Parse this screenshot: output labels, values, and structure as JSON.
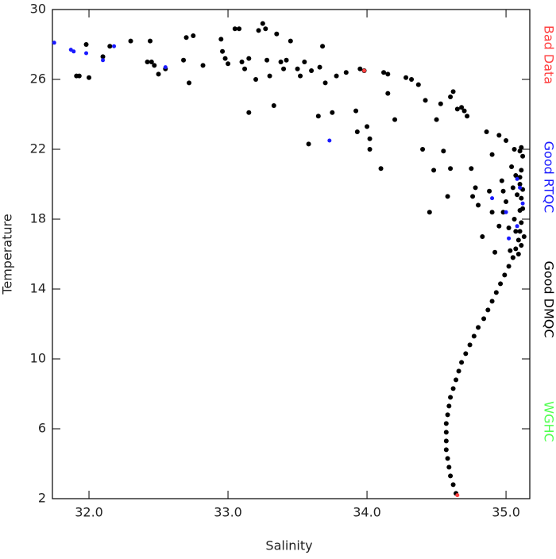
{
  "chart_data": {
    "type": "scatter",
    "xlabel": "Salinity",
    "ylabel": "Temperature",
    "xlim": [
      31.737,
      35.171
    ],
    "ylim": [
      2,
      30
    ],
    "xticks": [
      {
        "value": 32,
        "label": "32.0"
      },
      {
        "value": 33,
        "label": "33.0"
      },
      {
        "value": 34,
        "label": "34.0"
      },
      {
        "value": 35,
        "label": "35.0"
      }
    ],
    "yticks": [
      2,
      6,
      10,
      14,
      18,
      22,
      26,
      30
    ],
    "legend": "right",
    "series": [
      {
        "name": "Bad Data",
        "color": "#ff4040",
        "x": [
          34.65,
          33.98
        ],
        "values": [
          2.2,
          26.5
        ]
      },
      {
        "name": "Good RTQC",
        "color": "#1a1aff",
        "x": [
          31.75,
          31.87,
          31.89,
          31.98,
          32.1,
          32.18,
          32.55,
          33.73,
          34.9,
          35.0,
          35.08,
          35.12,
          35.08,
          35.02,
          35.1
        ],
        "values": [
          28.1,
          27.7,
          27.6,
          27.5,
          27.1,
          27.9,
          26.7,
          22.5,
          19.2,
          18.4,
          17.6,
          18.9,
          20.3,
          16.9,
          19.8
        ]
      },
      {
        "name": "Good DMQC",
        "color": "#000000",
        "x": [
          34.64,
          34.62,
          34.6,
          34.59,
          34.58,
          34.57,
          34.57,
          34.57,
          34.57,
          34.58,
          34.59,
          34.6,
          34.62,
          34.64,
          34.66,
          34.68,
          34.71,
          34.74,
          34.77,
          34.8,
          34.84,
          34.87,
          34.9,
          34.93,
          34.96,
          34.99,
          35.02,
          35.05,
          35.07,
          35.09,
          35.1,
          35.11,
          35.1,
          35.11,
          35.1,
          35.11,
          35.12,
          35.11,
          31.98,
          31.93,
          31.91,
          32.0,
          32.1,
          32.15,
          32.3,
          32.42,
          32.44,
          32.45,
          32.47,
          32.5,
          32.55,
          32.68,
          32.7,
          32.72,
          32.75,
          32.82,
          32.95,
          32.96,
          32.98,
          33.0,
          33.05,
          33.08,
          33.1,
          33.12,
          33.15,
          33.15,
          33.2,
          33.22,
          33.25,
          33.27,
          33.28,
          33.3,
          33.33,
          33.35,
          33.38,
          33.4,
          33.42,
          33.45,
          33.5,
          33.52,
          33.55,
          33.6,
          33.65,
          33.66,
          33.68,
          33.7,
          33.75,
          33.78,
          33.85,
          33.92,
          33.93,
          33.98,
          34.0,
          34.02,
          34.02,
          34.1,
          34.12,
          34.15,
          34.15,
          34.2,
          34.28,
          34.32,
          34.37,
          34.4,
          34.42,
          34.45,
          34.48,
          34.5,
          34.53,
          34.55,
          34.58,
          34.6,
          34.62,
          34.65,
          34.68,
          34.7,
          34.72,
          34.75,
          34.76,
          34.78,
          34.8,
          34.83,
          34.86,
          34.9,
          34.88,
          34.9,
          34.92,
          34.95,
          34.97,
          34.98,
          35.0,
          35.0,
          35.02,
          35.04,
          35.05,
          35.06,
          35.06,
          35.07,
          35.08,
          35.1,
          35.12,
          35.12,
          35.07,
          35.03,
          35.05,
          35.09,
          35.11,
          34.95,
          35.1,
          35.13,
          34.6,
          34.98,
          33.58,
          33.95
        ],
        "values": [
          2.3,
          2.8,
          3.3,
          3.8,
          4.3,
          4.8,
          5.3,
          5.8,
          6.3,
          6.8,
          7.3,
          7.8,
          8.3,
          8.8,
          9.3,
          9.8,
          10.3,
          10.8,
          11.3,
          11.8,
          12.3,
          12.8,
          13.3,
          13.8,
          14.3,
          14.8,
          15.3,
          15.8,
          16.3,
          16.8,
          17.3,
          17.8,
          18.5,
          19.2,
          20.0,
          20.8,
          21.6,
          22.1,
          28.0,
          26.2,
          26.2,
          26.1,
          27.3,
          27.9,
          28.2,
          27.0,
          28.2,
          27.0,
          26.8,
          26.3,
          26.6,
          27.1,
          28.4,
          25.8,
          28.5,
          26.8,
          28.3,
          27.6,
          27.2,
          26.9,
          28.9,
          28.9,
          27.0,
          26.6,
          27.2,
          24.1,
          26.0,
          28.8,
          29.2,
          28.9,
          27.1,
          26.2,
          24.5,
          28.6,
          27.0,
          26.6,
          27.1,
          28.2,
          26.6,
          26.2,
          27.0,
          26.5,
          23.9,
          26.7,
          27.9,
          25.8,
          24.1,
          26.2,
          26.4,
          24.2,
          23.0,
          26.5,
          23.3,
          22.6,
          22.0,
          20.9,
          26.4,
          26.3,
          25.2,
          23.7,
          26.1,
          26.0,
          25.7,
          22.0,
          24.8,
          18.4,
          20.8,
          23.7,
          24.6,
          21.9,
          19.3,
          25.0,
          25.3,
          24.3,
          24.4,
          24.2,
          23.9,
          20.9,
          19.3,
          19.8,
          18.8,
          17.0,
          23.0,
          21.7,
          19.6,
          18.4,
          16.1,
          22.8,
          20.2,
          18.4,
          22.5,
          19.0,
          17.5,
          21.0,
          19.8,
          18.0,
          22.0,
          20.5,
          19.4,
          21.9,
          19.7,
          18.6,
          17.3,
          16.2,
          15.8,
          16.0,
          16.5,
          17.6,
          20.4,
          17.0,
          20.9,
          19.6,
          22.3,
          26.6
        ]
      },
      {
        "name": "WGHC",
        "color": "#50ff50",
        "x": [],
        "values": []
      }
    ]
  }
}
